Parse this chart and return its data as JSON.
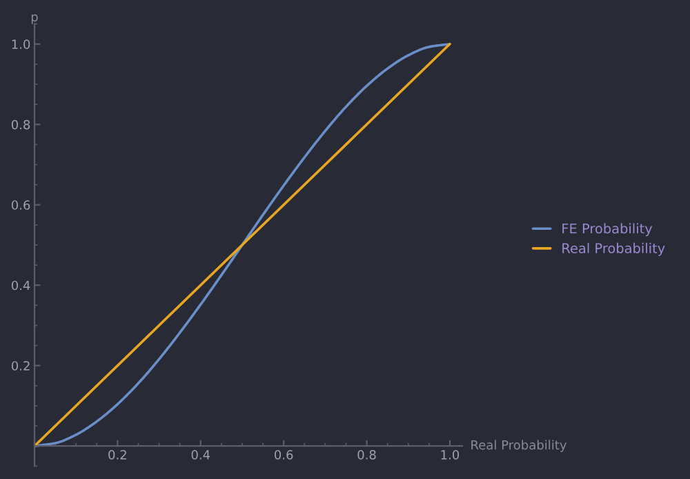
{
  "chart_data": {
    "type": "line",
    "xlabel": "Real Probability",
    "ylabel": "p",
    "xlim": [
      0,
      1.03
    ],
    "ylim": [
      -0.05,
      1.05
    ],
    "xticks": [
      {
        "value": 0,
        "label": null
      },
      0.2,
      0.4,
      0.6,
      0.8,
      {
        "value": 1,
        "label": "1.0"
      }
    ],
    "yticks": [
      {
        "value": 0,
        "label": null
      },
      0.2,
      0.4,
      0.6,
      0.8,
      {
        "value": 1,
        "label": "1.0"
      }
    ],
    "grid": false,
    "legend": "right",
    "marker": "none",
    "line_style": "solid",
    "series": [
      {
        "name": "FE Probability",
        "color": "#6a8fc8",
        "x": [
          0,
          0.05,
          0.1,
          0.15,
          0.2,
          0.25,
          0.3,
          0.35,
          0.4,
          0.45,
          0.5,
          0.55,
          0.6,
          0.65,
          0.7,
          0.75,
          0.8,
          0.85,
          0.9,
          0.95,
          1.0
        ],
        "values": [
          0,
          0.007,
          0.028,
          0.061,
          0.104,
          0.156,
          0.216,
          0.282,
          0.352,
          0.425,
          0.5,
          0.575,
          0.648,
          0.718,
          0.784,
          0.844,
          0.896,
          0.939,
          0.972,
          0.993,
          1.0
        ]
      },
      {
        "name": "Real Probability",
        "color": "#e8a623",
        "x": [
          0,
          1.0
        ],
        "values": [
          0,
          1.0
        ]
      }
    ]
  }
}
